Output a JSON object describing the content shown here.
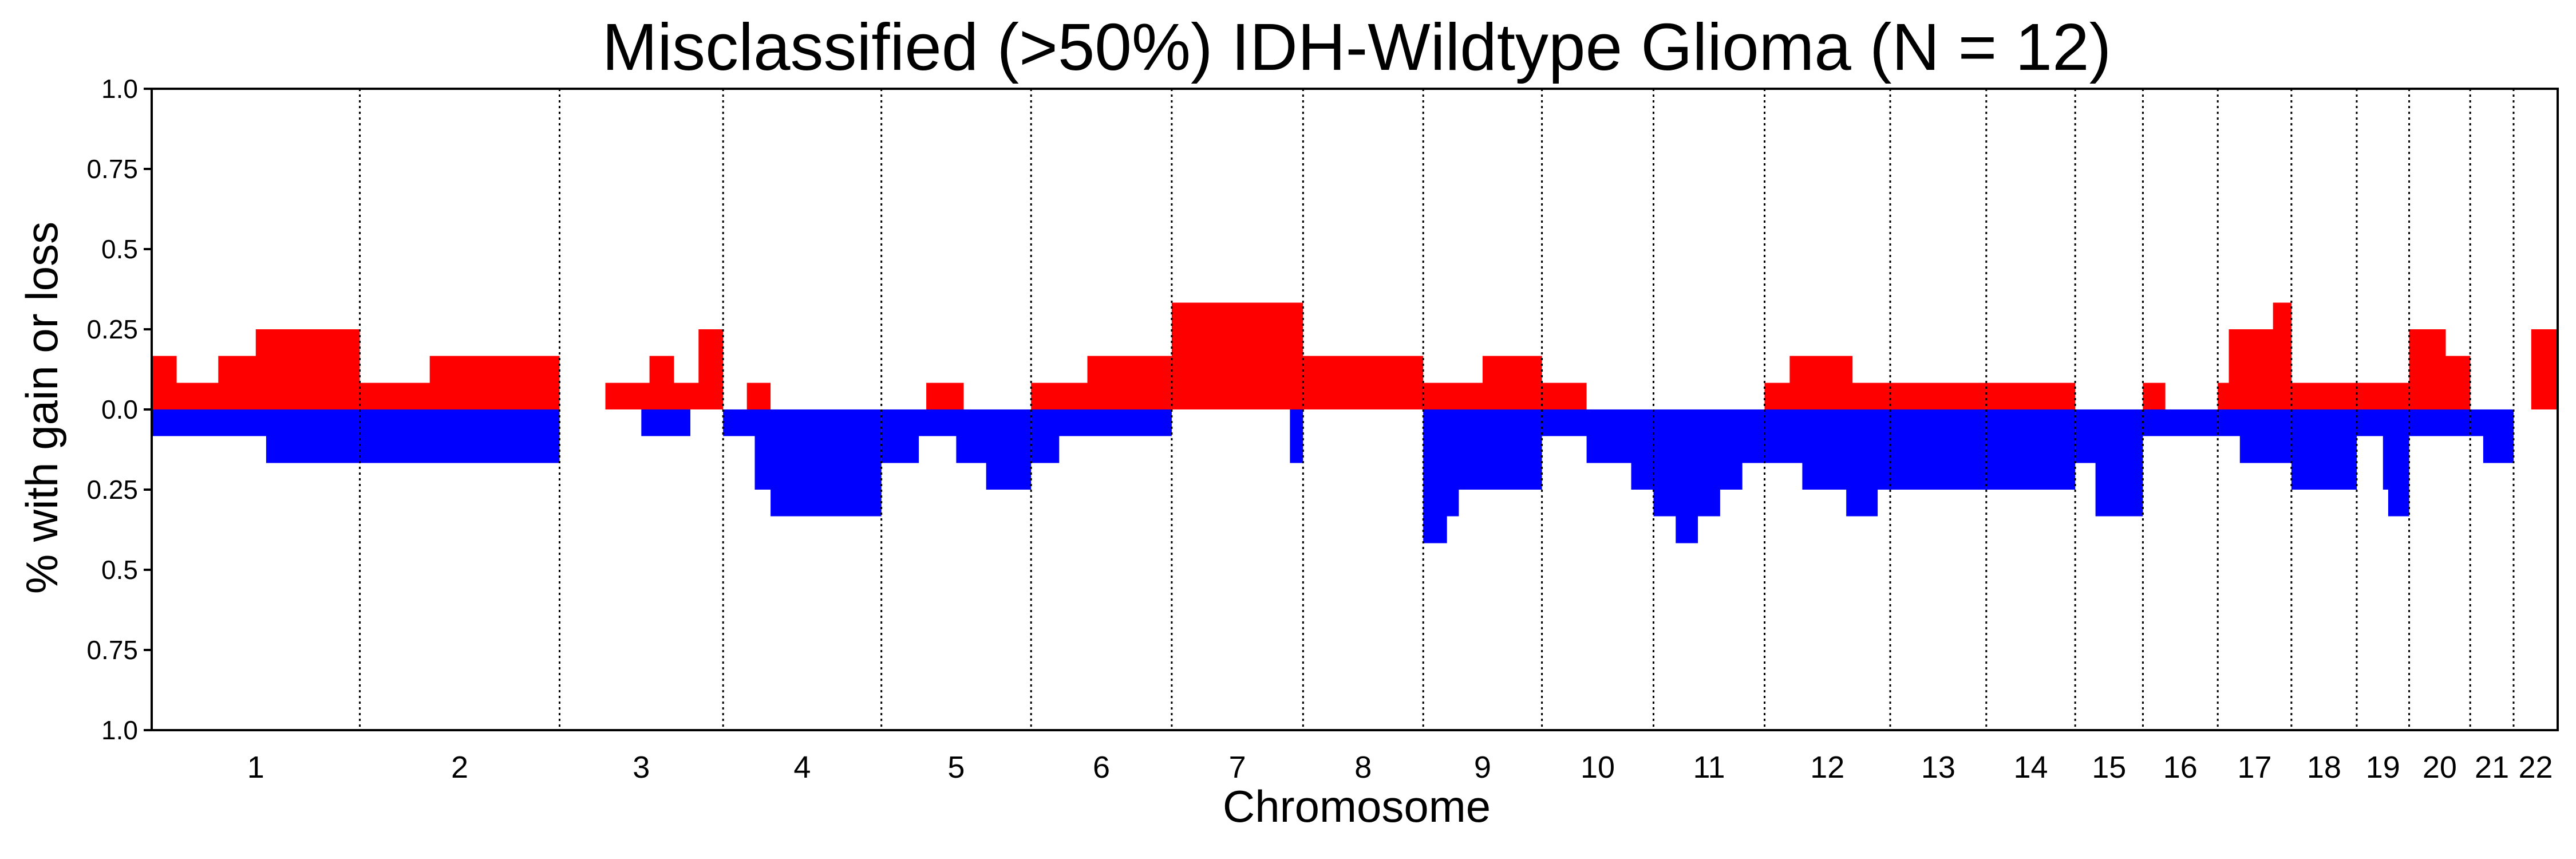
{
  "chart_data": {
    "type": "area",
    "title": "Misclassified (>50%) IDH-Wildtype Glioma (N = 12)",
    "xlabel": "Chromosome",
    "ylabel": "% with gain or loss",
    "y_tick_labels": [
      "1.0",
      "0.75",
      "0.5",
      "0.25",
      "0.0",
      "0.25",
      "0.5",
      "0.75",
      "1.0"
    ],
    "y_tick_values": [
      1.0,
      0.75,
      0.5,
      0.25,
      0.0,
      -0.25,
      -0.5,
      -0.75,
      -1.0
    ],
    "ylim": [
      -1.0,
      1.0
    ],
    "grid": false,
    "chromosome_separators": "dotted vertical lines",
    "colors": {
      "gain": "#ff0000",
      "loss": "#0000ff"
    },
    "chromosomes": [
      {
        "name": "1",
        "gain": [
          [
            0,
            0.167
          ],
          [
            0.12,
            0.083
          ],
          [
            0.32,
            0.167
          ],
          [
            0.5,
            0.25
          ],
          [
            0.65,
            0.25
          ],
          [
            1,
            0.25
          ]
        ],
        "loss": [
          [
            0,
            -0.083
          ],
          [
            0.55,
            -0.167
          ],
          [
            1,
            -0.167
          ]
        ]
      },
      {
        "name": "2",
        "gain": [
          [
            0,
            0.083
          ],
          [
            0.35,
            0.167
          ],
          [
            1,
            0.083
          ]
        ],
        "loss": [
          [
            0,
            -0.167
          ],
          [
            1,
            -0.167
          ]
        ]
      },
      {
        "name": "3",
        "gain": [
          [
            0,
            0
          ],
          [
            0.28,
            0.083
          ],
          [
            0.55,
            0.167
          ],
          [
            0.7,
            0.083
          ],
          [
            0.85,
            0.25
          ],
          [
            1,
            0.25
          ]
        ],
        "loss": [
          [
            0,
            0
          ],
          [
            0.28,
            0
          ],
          [
            0.5,
            -0.083
          ],
          [
            0.75,
            -0.083
          ],
          [
            0.8,
            0
          ],
          [
            1,
            0
          ]
        ]
      },
      {
        "name": "4",
        "gain": [
          [
            0,
            0
          ],
          [
            0.15,
            0.083
          ],
          [
            0.3,
            0
          ],
          [
            1,
            0
          ]
        ],
        "loss": [
          [
            0,
            -0.083
          ],
          [
            0.2,
            -0.25
          ],
          [
            0.3,
            -0.333
          ],
          [
            1,
            -0.333
          ]
        ]
      },
      {
        "name": "5",
        "gain": [
          [
            0,
            0
          ],
          [
            0.3,
            0.083
          ],
          [
            0.55,
            0
          ],
          [
            1,
            0
          ]
        ],
        "loss": [
          [
            0,
            -0.167
          ],
          [
            0.25,
            -0.083
          ],
          [
            0.5,
            -0.167
          ],
          [
            0.7,
            -0.25
          ],
          [
            1,
            -0.25
          ]
        ]
      },
      {
        "name": "6",
        "gain": [
          [
            0,
            0.083
          ],
          [
            0.4,
            0.167
          ],
          [
            1,
            0.167
          ]
        ],
        "loss": [
          [
            0,
            -0.167
          ],
          [
            0.2,
            -0.083
          ],
          [
            1,
            -0.083
          ]
        ]
      },
      {
        "name": "7",
        "gain": [
          [
            0,
            0.333
          ],
          [
            0.4,
            0.333
          ],
          [
            0.6,
            0.333
          ],
          [
            1,
            0.333
          ]
        ],
        "loss": [
          [
            0,
            0
          ],
          [
            0.85,
            0
          ],
          [
            0.9,
            -0.167
          ],
          [
            1,
            0
          ]
        ]
      },
      {
        "name": "8",
        "gain": [
          [
            0,
            0.167
          ],
          [
            1,
            0.167
          ]
        ],
        "loss": [
          [
            0,
            0
          ],
          [
            1,
            0
          ]
        ]
      },
      {
        "name": "9",
        "gain": [
          [
            0,
            0.083
          ],
          [
            0.5,
            0.167
          ],
          [
            1,
            0.083
          ]
        ],
        "loss": [
          [
            0,
            -0.417
          ],
          [
            0.2,
            -0.333
          ],
          [
            0.3,
            -0.25
          ],
          [
            1,
            -0.25
          ]
        ]
      },
      {
        "name": "10",
        "gain": [
          [
            0,
            0.083
          ],
          [
            0.3,
            0.083
          ],
          [
            0.4,
            0
          ],
          [
            1,
            0
          ]
        ],
        "loss": [
          [
            0,
            -0.083
          ],
          [
            0.4,
            -0.167
          ],
          [
            0.8,
            -0.25
          ],
          [
            1,
            -0.167
          ]
        ]
      },
      {
        "name": "11",
        "gain": [
          [
            0,
            0
          ],
          [
            1,
            0
          ]
        ],
        "loss": [
          [
            0,
            -0.333
          ],
          [
            0.2,
            -0.417
          ],
          [
            0.4,
            -0.333
          ],
          [
            0.6,
            -0.25
          ],
          [
            0.8,
            -0.167
          ],
          [
            1,
            -0.083
          ]
        ]
      },
      {
        "name": "12",
        "gain": [
          [
            0,
            0.083
          ],
          [
            0.2,
            0.167
          ],
          [
            0.5,
            0.167
          ],
          [
            0.7,
            0.083
          ],
          [
            1,
            0
          ]
        ],
        "loss": [
          [
            0,
            -0.167
          ],
          [
            0.3,
            -0.25
          ],
          [
            0.65,
            -0.333
          ],
          [
            0.9,
            -0.25
          ],
          [
            1,
            -0.25
          ]
        ]
      },
      {
        "name": "13",
        "gain": [
          [
            0,
            0.083
          ],
          [
            1,
            0.083
          ]
        ],
        "loss": [
          [
            0,
            -0.25
          ],
          [
            1,
            -0.25
          ]
        ]
      },
      {
        "name": "14",
        "gain": [
          [
            0,
            0.083
          ],
          [
            1,
            0.083
          ]
        ],
        "loss": [
          [
            0,
            -0.25
          ],
          [
            0.7,
            -0.25
          ],
          [
            1,
            -0.167
          ]
        ]
      },
      {
        "name": "15",
        "gain": [
          [
            0,
            0
          ],
          [
            0.1,
            0
          ],
          [
            1,
            0
          ]
        ],
        "loss": [
          [
            0,
            -0.167
          ],
          [
            0.3,
            -0.333
          ],
          [
            1,
            -0.333
          ]
        ]
      },
      {
        "name": "16",
        "gain": [
          [
            0,
            0.083
          ],
          [
            0.3,
            0
          ],
          [
            1,
            0
          ]
        ],
        "loss": [
          [
            0,
            -0.083
          ],
          [
            1,
            -0.083
          ]
        ]
      },
      {
        "name": "17",
        "gain": [
          [
            0,
            0.083
          ],
          [
            0.15,
            0.25
          ],
          [
            0.6,
            0.25
          ],
          [
            0.75,
            0.333
          ],
          [
            1,
            0.333
          ]
        ],
        "loss": [
          [
            0,
            -0.083
          ],
          [
            0.3,
            -0.167
          ],
          [
            1,
            -0.083
          ]
        ]
      },
      {
        "name": "18",
        "gain": [
          [
            0,
            0.083
          ],
          [
            1,
            0.083
          ]
        ],
        "loss": [
          [
            0,
            -0.25
          ],
          [
            1,
            -0.25
          ]
        ]
      },
      {
        "name": "19",
        "gain": [
          [
            0,
            0.083
          ],
          [
            1,
            0.083
          ]
        ],
        "loss": [
          [
            0,
            -0.083
          ],
          [
            0.5,
            -0.25
          ],
          [
            0.6,
            -0.333
          ],
          [
            1,
            -0.333
          ]
        ]
      },
      {
        "name": "20",
        "gain": [
          [
            0,
            0.25
          ],
          [
            0.4,
            0.25
          ],
          [
            0.6,
            0.167
          ],
          [
            1,
            0.167
          ]
        ],
        "loss": [
          [
            0,
            -0.083
          ],
          [
            1,
            -0.083
          ]
        ]
      },
      {
        "name": "21",
        "gain": [
          [
            0,
            0
          ],
          [
            1,
            0
          ]
        ],
        "loss": [
          [
            0,
            -0.083
          ],
          [
            0.3,
            -0.167
          ],
          [
            1,
            -0.083
          ]
        ]
      },
      {
        "name": "22",
        "gain": [
          [
            0,
            0
          ],
          [
            0.4,
            0.25
          ],
          [
            1,
            0.25
          ]
        ],
        "loss": [
          [
            0,
            0
          ],
          [
            1,
            0
          ]
        ]
      }
    ]
  }
}
